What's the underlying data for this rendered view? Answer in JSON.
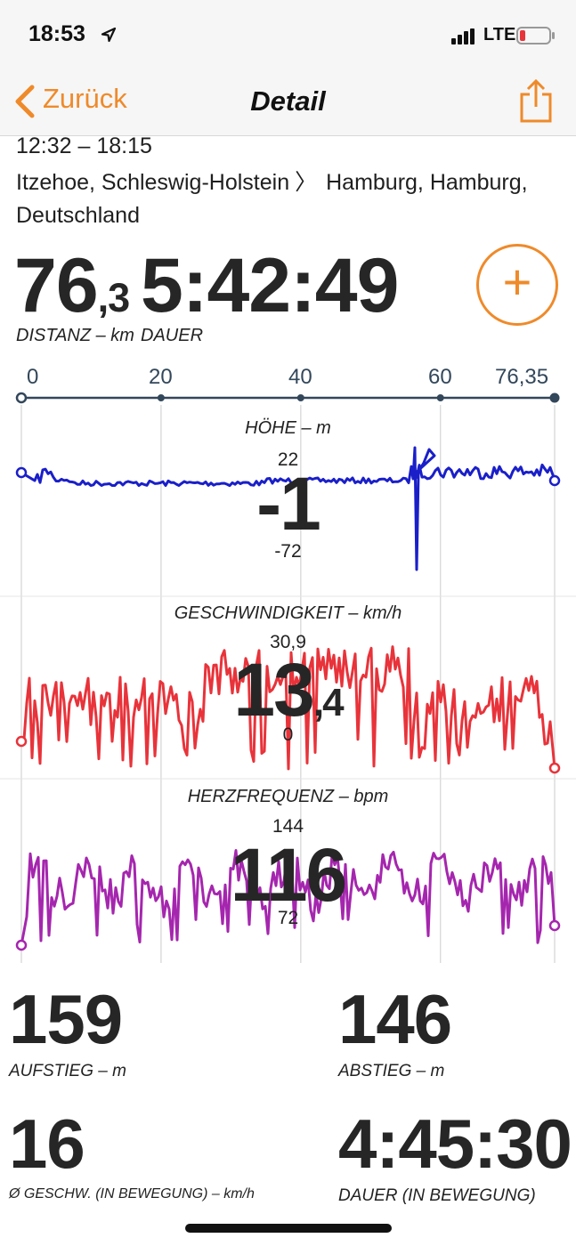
{
  "status_bar": {
    "time": "18:53",
    "network": "LTE"
  },
  "nav": {
    "back_label": "Zurück",
    "title": "Detail"
  },
  "activity": {
    "time_range": "12:32 – 18:15",
    "route_from": "Itzehoe, Schleswig-Holstein",
    "route_to": "Hamburg, Hamburg,",
    "route_country": "Deutschland"
  },
  "summary": {
    "distance_int": "76",
    "distance_dec": ",3",
    "distance_caption": "DISTANZ – km",
    "duration": "5:42:49",
    "duration_caption": "DAUER"
  },
  "km_axis": {
    "labels": [
      "0",
      "20",
      "40",
      "60",
      "76,35"
    ],
    "values": [
      0,
      20,
      40,
      60,
      76.35
    ]
  },
  "charts": {
    "elevation": {
      "title": "HÖHE – m",
      "max": "22",
      "current": "-1",
      "min": "-72",
      "color": "#1a1fc9"
    },
    "speed": {
      "title": "GESCHWINDIGKEIT – km/h",
      "max": "30,9",
      "current_int": "13",
      "current_dec": ",4",
      "min": "0",
      "color": "#e8333a"
    },
    "heart_rate": {
      "title": "HERZFREQUENZ – bpm",
      "max": "144",
      "current": "116",
      "min": "72",
      "color": "#a526ae"
    }
  },
  "stats": [
    {
      "value": "159",
      "caption": "AUFSTIEG – m"
    },
    {
      "value": "146",
      "caption": "ABSTIEG – m"
    },
    {
      "value": "16",
      "caption": "Ø GESCHW. (IN BEWEGUNG) – km/h"
    },
    {
      "value": "4:45:30",
      "caption": "DAUER (IN BEWEGUNG)"
    }
  ],
  "colors": {
    "accent": "#ef8a2a",
    "axis": "#33475b"
  },
  "icons": {
    "location": "location-arrow-icon",
    "back": "chevron-left-icon",
    "share": "share-icon",
    "add": "plus-icon"
  }
}
